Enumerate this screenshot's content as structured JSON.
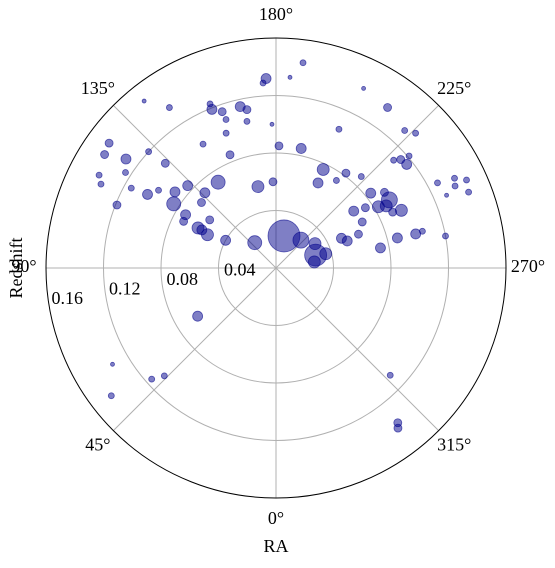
{
  "chart_data": {
    "type": "scatter",
    "polar": true,
    "x_label": "RA",
    "y_label": "Redshift",
    "xlim": [
      0,
      360
    ],
    "ylim": [
      0,
      0.16
    ],
    "xticks": [
      {
        "value": 0,
        "label": "0°"
      },
      {
        "value": 45,
        "label": "45°"
      },
      {
        "value": 90,
        "label": "90°"
      },
      {
        "value": 135,
        "label": "135°"
      },
      {
        "value": 180,
        "label": "180°"
      },
      {
        "value": 225,
        "label": "225°"
      },
      {
        "value": 270,
        "label": "270°"
      },
      {
        "value": 315,
        "label": "315°"
      }
    ],
    "yticks": [
      0.04,
      0.08,
      0.12,
      0.16
    ],
    "grid": true,
    "color": "#00008b",
    "x": [
      194,
      221.8,
      252,
      238,
      254,
      261,
      140,
      118.8,
      58.4,
      115.9,
      117.2,
      117.2,
      122.1,
      120.5,
      116.8,
      146,
      136.6,
      131.3,
      126,
      167.5,
      178,
      133,
      127,
      133.4,
      119.8,
      123.5,
      111.6,
      118.9,
      126,
      126.8,
      123.5,
      117.7,
      115.6,
      122.4,
      132.4,
      141.7,
      146.4,
      158,
      161,
      158.1,
      167.5,
      169.6,
      177,
      176,
      184.2,
      187.5,
      161.4,
      168.8,
      159.7,
      149.5,
      157.9,
      178.4,
      181.4,
      191.9,
      204.4,
      206,
      214.8,
      223.1,
      226,
      227.5,
      229,
      231.6,
      229.9,
      205.6,
      206.3,
      216.4,
      223,
      214.6,
      231.7,
      235.1,
      239,
      239.1,
      240.6,
      245.3,
      244.4,
      236,
      233.8,
      241.9,
      247.7,
      245.6,
      249.2,
      259.1,
      256.1,
      256.3,
      255.9,
      259.3,
      242.2,
      243.3,
      245.4,
      248.5,
      245.2,
      246.9,
      313.2,
      321.8,
      322.7,
      46,
      48.2,
      59.5,
      52.2
    ],
    "values": [
      0.023,
      0.026,
      0.029,
      0.032,
      0.036,
      0.027,
      0.023,
      0.04,
      0.064,
      0.053,
      0.061,
      0.058,
      0.084,
      0.073,
      0.072,
      0.072,
      0.072,
      0.069,
      0.057,
      0.058,
      0.06,
      0.084,
      0.088,
      0.106,
      0.103,
      0.098,
      0.119,
      0.115,
      0.129,
      0.145,
      0.143,
      0.139,
      0.135,
      0.124,
      0.12,
      0.148,
      0.134,
      0.119,
      0.115,
      0.123,
      0.115,
      0.112,
      0.132,
      0.129,
      0.133,
      0.144,
      0.109,
      0.104,
      0.1,
      0.1,
      0.085,
      0.1,
      0.085,
      0.085,
      0.106,
      0.139,
      0.136,
      0.131,
      0.135,
      0.111,
      0.115,
      0.116,
      0.121,
      0.076,
      0.066,
      0.082,
      0.087,
      0.074,
      0.084,
      0.092,
      0.092,
      0.083,
      0.088,
      0.096,
      0.09,
      0.075,
      0.067,
      0.068,
      0.062,
      0.05,
      0.053,
      0.074,
      0.087,
      0.1,
      0.105,
      0.12,
      0.127,
      0.139,
      0.137,
      0.144,
      0.146,
      0.129,
      0.109,
      0.137,
      0.14,
      0.108,
      0.116,
      0.132,
      0.145
    ],
    "sizes": [
      16,
      8,
      11,
      6,
      6,
      6,
      7,
      5,
      5,
      6,
      6,
      5,
      7,
      5,
      4,
      7,
      5,
      4,
      4,
      6,
      4,
      5,
      5,
      4,
      5,
      3,
      4,
      3,
      5,
      4,
      4,
      3,
      3,
      3,
      3,
      2,
      3,
      5,
      4,
      3,
      5,
      4,
      5,
      3,
      2,
      3,
      3,
      3,
      3,
      3,
      4,
      2,
      4,
      5,
      3,
      2,
      4,
      3,
      3,
      3,
      4,
      5,
      3,
      6,
      5,
      4,
      3,
      3,
      5,
      4,
      8,
      6,
      6,
      6,
      4,
      4,
      5,
      4,
      4,
      5,
      5,
      5,
      5,
      5,
      3,
      3,
      3,
      3,
      3,
      3,
      3,
      2,
      3,
      4,
      4,
      3,
      3,
      2,
      3
    ]
  }
}
